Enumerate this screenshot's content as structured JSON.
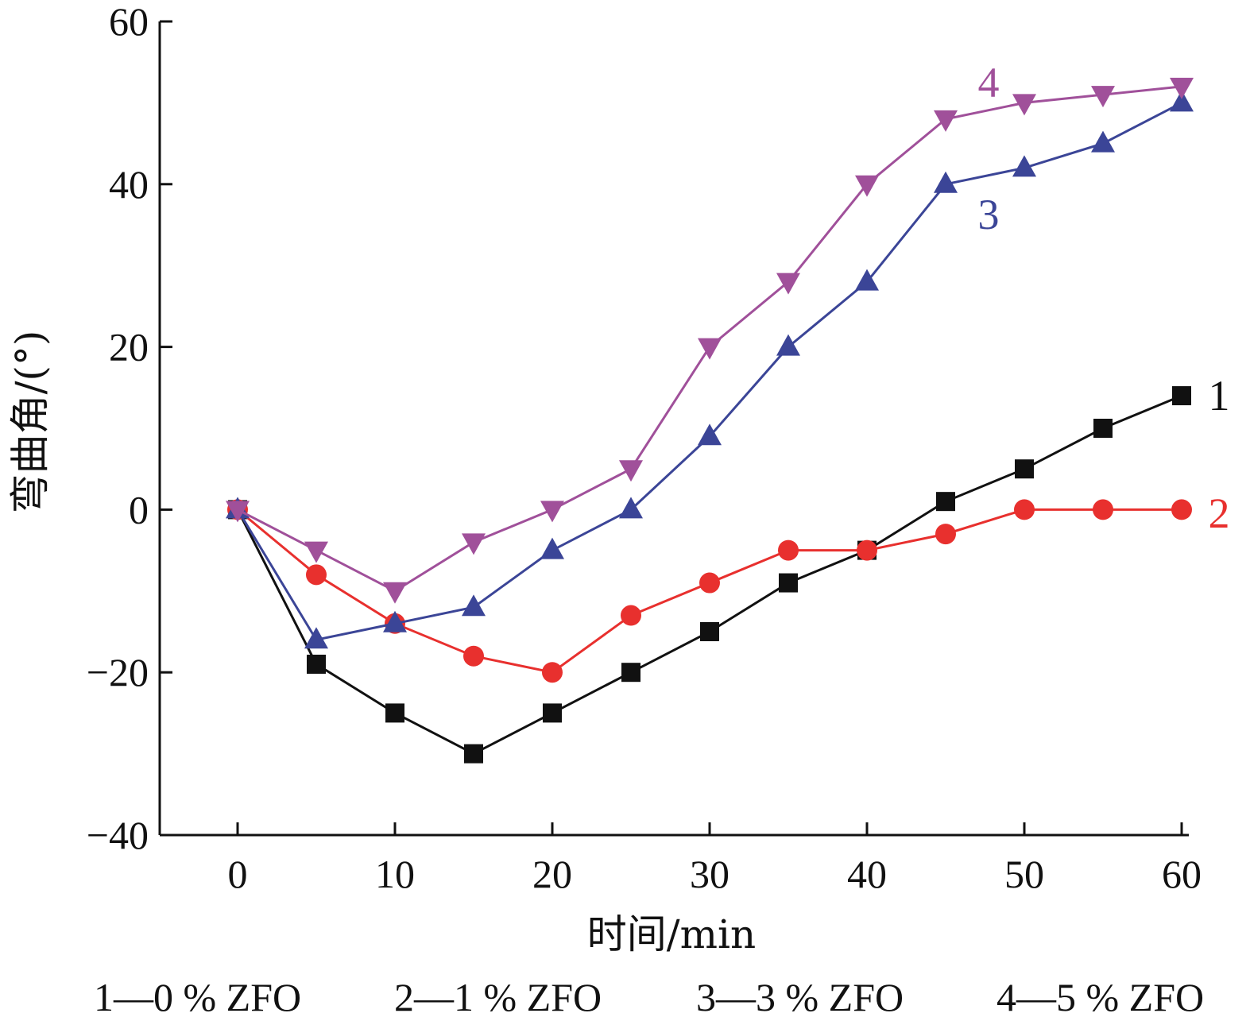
{
  "chart_data": {
    "type": "line",
    "xlabel": "时间/min",
    "ylabel": "弯曲角/(°)",
    "xlim": [
      -5,
      60
    ],
    "ylim": [
      -40,
      60
    ],
    "xticks": [
      0,
      10,
      20,
      30,
      40,
      50,
      60
    ],
    "yticks": [
      -40,
      -20,
      0,
      20,
      40,
      60
    ],
    "xtick_labels": [
      "0",
      "10",
      "20",
      "30",
      "40",
      "50",
      "60"
    ],
    "ytick_labels": [
      "−40",
      "−20",
      "0",
      "20",
      "40",
      "60"
    ],
    "grid": false,
    "x": [
      0,
      5,
      10,
      15,
      20,
      25,
      30,
      35,
      40,
      45,
      50,
      55,
      60
    ],
    "series": [
      {
        "label": "1",
        "color": "#111111",
        "marker": "square",
        "values": [
          0,
          -19,
          -25,
          -30,
          -25,
          -20,
          -15,
          -9,
          -5,
          1,
          5,
          10,
          14
        ]
      },
      {
        "label": "2",
        "color": "#e8302e",
        "marker": "circle",
        "values": [
          0,
          -8,
          -14,
          -18,
          -20,
          -13,
          -9,
          -5,
          -5,
          -3,
          0,
          0,
          0
        ]
      },
      {
        "label": "3",
        "color": "#3b4597",
        "marker": "triangle-up",
        "values": [
          0,
          -16,
          -14,
          -12,
          -5,
          0,
          9,
          20,
          28,
          40,
          42,
          45,
          50
        ]
      },
      {
        "label": "4",
        "color": "#a0509a",
        "marker": "triangle-down",
        "values": [
          0,
          -5,
          -10,
          -4,
          0,
          5,
          20,
          28,
          40,
          48,
          50,
          51,
          52
        ]
      }
    ],
    "legend": {
      "placement": "bottom",
      "entries": [
        "1—0 % ZFO",
        "2—1 % ZFO",
        "3—3 % ZFO",
        "4—5 % ZFO"
      ]
    }
  }
}
